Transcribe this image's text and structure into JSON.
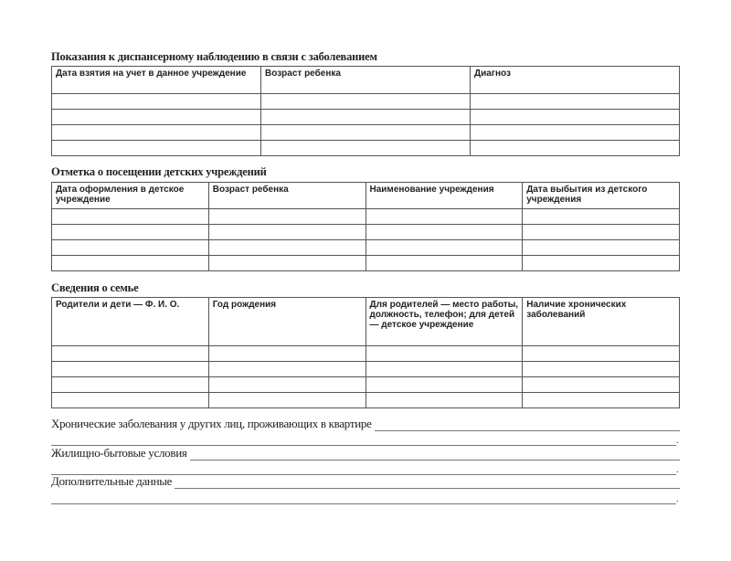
{
  "sections": [
    {
      "title": "Показания к диспансерному наблюдению в связи с заболеванием",
      "columns": [
        "Дата взятия на учет в данное учреждение",
        "Возраст ребенка",
        "Диагноз"
      ]
    },
    {
      "title": "Отметка о посещении детских учреждений",
      "columns": [
        "Дата оформления в детское учреждение",
        "Возраст ребенка",
        "Наименование учреждения",
        "Дата выбытия из детского учреждения"
      ]
    },
    {
      "title": "Сведения о семье",
      "columns": [
        "Родители и дети — Ф. И. О.",
        "Год рождения",
        "Для родителей — место работы, должность, телефон; для детей — детское учреждение",
        "Наличие хронических заболеваний"
      ]
    }
  ],
  "fields": [
    {
      "label": "Хронические заболевания у других лиц, проживающих в квартире"
    },
    {
      "label": "Жилищно-бытовые условия"
    },
    {
      "label": "Дополнительные данные"
    }
  ],
  "empty_rows_per_table": 4
}
